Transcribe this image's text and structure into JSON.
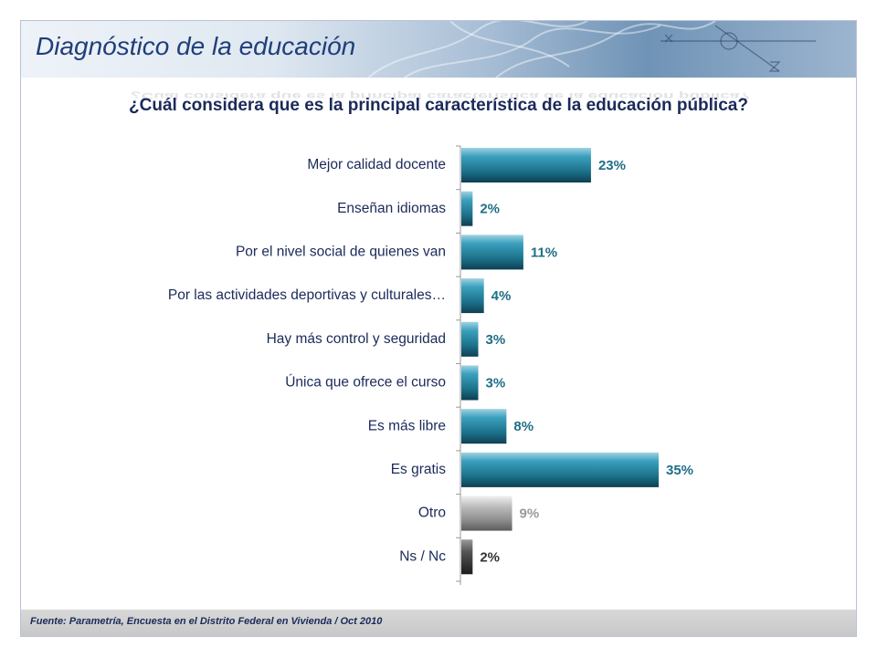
{
  "header": {
    "title": "Diagnóstico de la educación"
  },
  "chart_data": {
    "type": "bar",
    "orientation": "horizontal",
    "title": "¿Cuál considera que es la principal característica de la educación pública?",
    "categories": [
      "Mejor calidad docente",
      "Enseñan idiomas",
      "Por el nivel social de quienes van",
      "Por las actividades deportivas y culturales…",
      "Hay más control y seguridad",
      "Única que ofrece el curso",
      "Es más libre",
      "Es gratis",
      "Otro",
      "Ns / Nc"
    ],
    "values": [
      23,
      2,
      11,
      4,
      3,
      3,
      8,
      35,
      9,
      2
    ],
    "value_labels": [
      "23%",
      "2%",
      "11%",
      "4%",
      "3%",
      "3%",
      "8%",
      "35%",
      "9%",
      "2%"
    ],
    "unit": "%",
    "xlim": [
      0,
      35
    ],
    "bar_styles": [
      "teal",
      "teal",
      "teal",
      "teal",
      "teal",
      "teal",
      "teal",
      "teal",
      "gray",
      "dark"
    ],
    "colors": {
      "teal": "#1f7891",
      "gray": "#8a8a8a",
      "dark": "#333333",
      "label_teal": "#1f6e86",
      "label_gray": "#9a9a9a"
    },
    "xlabel": "",
    "ylabel": ""
  },
  "footer": {
    "source": "Fuente: Parametría, Encuesta en el Distrito Federal en Vivienda / Oct 2010"
  }
}
